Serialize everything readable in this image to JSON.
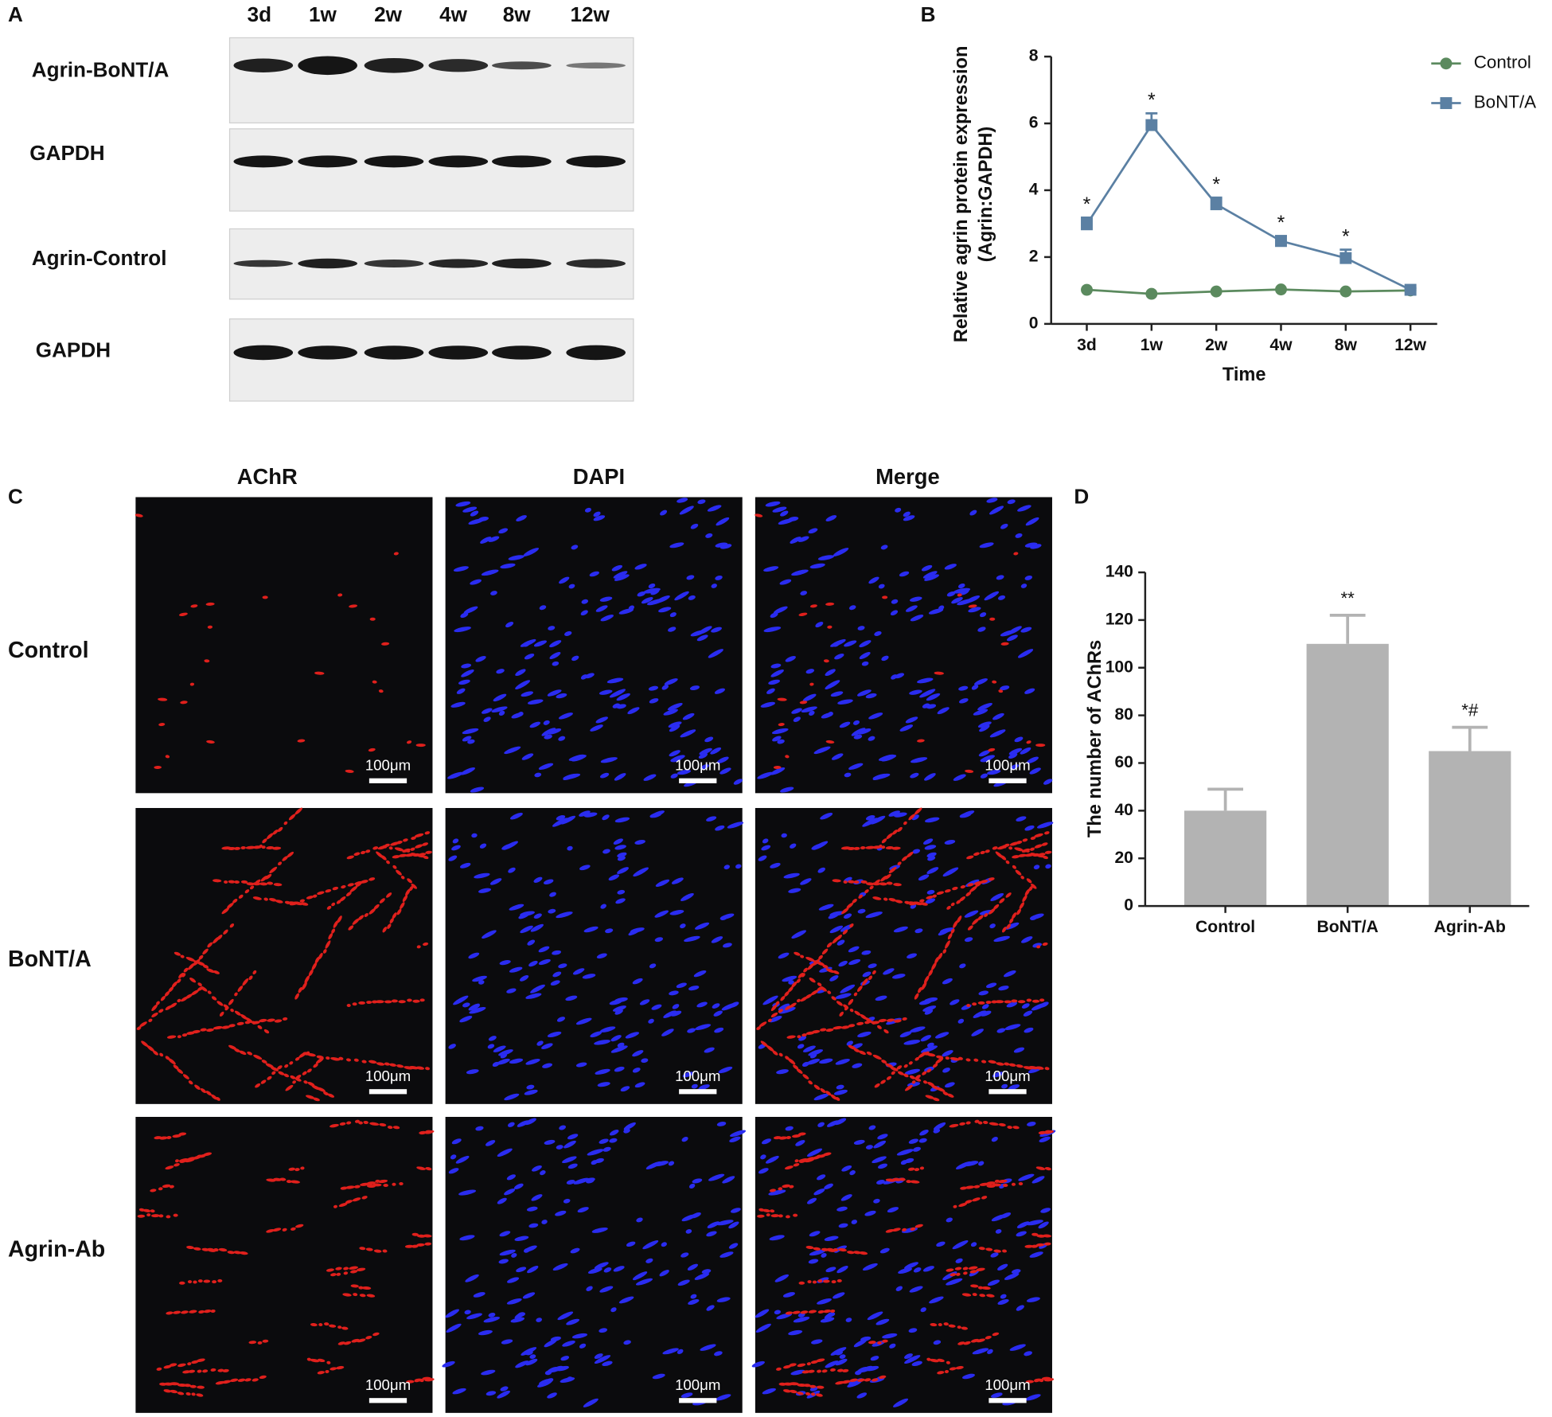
{
  "panel_labels": {
    "a": "A",
    "b": "B",
    "c": "C",
    "d": "D"
  },
  "western_blot": {
    "lanes": [
      "3d",
      "1w",
      "2w",
      "4w",
      "8w",
      "12w"
    ],
    "rows": [
      "Agrin-BoNT/A",
      "GAPDH",
      "Agrin-Control",
      "GAPDH"
    ]
  },
  "immunofluorescence": {
    "columns": [
      "AChR",
      "DAPI",
      "Merge"
    ],
    "rows": [
      "Control",
      "BoNT/A",
      "Agrin-Ab"
    ],
    "scale_bar": "100μm"
  },
  "chart_data": [
    {
      "type": "line",
      "y_label": [
        "Relative agrin protein expression",
        "(Agrin:GAPDH)"
      ],
      "x_label": "Time",
      "categories": [
        "3d",
        "1w",
        "2w",
        "4w",
        "8w",
        "12w"
      ],
      "ylim": [
        0,
        8
      ],
      "yticks": [
        0,
        2,
        4,
        6,
        8
      ],
      "legend": "top-right",
      "series": [
        {
          "name": "Control",
          "color": "#5b8a5e",
          "marker": "circle",
          "values": [
            1.02,
            0.9,
            0.97,
            1.03,
            0.97,
            1.0
          ]
        },
        {
          "name": "BoNT/A",
          "color": "#5b80a3",
          "marker": "square",
          "values": [
            2.98,
            5.95,
            3.58,
            2.48,
            1.97,
            1.02
          ],
          "errors": [
            0.2,
            0.35,
            0.2,
            0.15,
            0.25,
            0.05
          ],
          "annotations": [
            "*",
            "*",
            "*",
            "*",
            "*",
            null
          ]
        }
      ]
    },
    {
      "type": "bar",
      "y_label": "The number of AChRs",
      "categories": [
        "Control",
        "BoNT/A",
        "Agrin-Ab"
      ],
      "values": [
        40,
        110,
        65
      ],
      "errors": [
        9,
        12,
        10
      ],
      "annotations": [
        null,
        "**",
        "*#"
      ],
      "color": "#b3b3b3",
      "ylim": [
        0,
        140
      ],
      "yticks": [
        0,
        20,
        40,
        60,
        80,
        100,
        120,
        140
      ]
    }
  ]
}
